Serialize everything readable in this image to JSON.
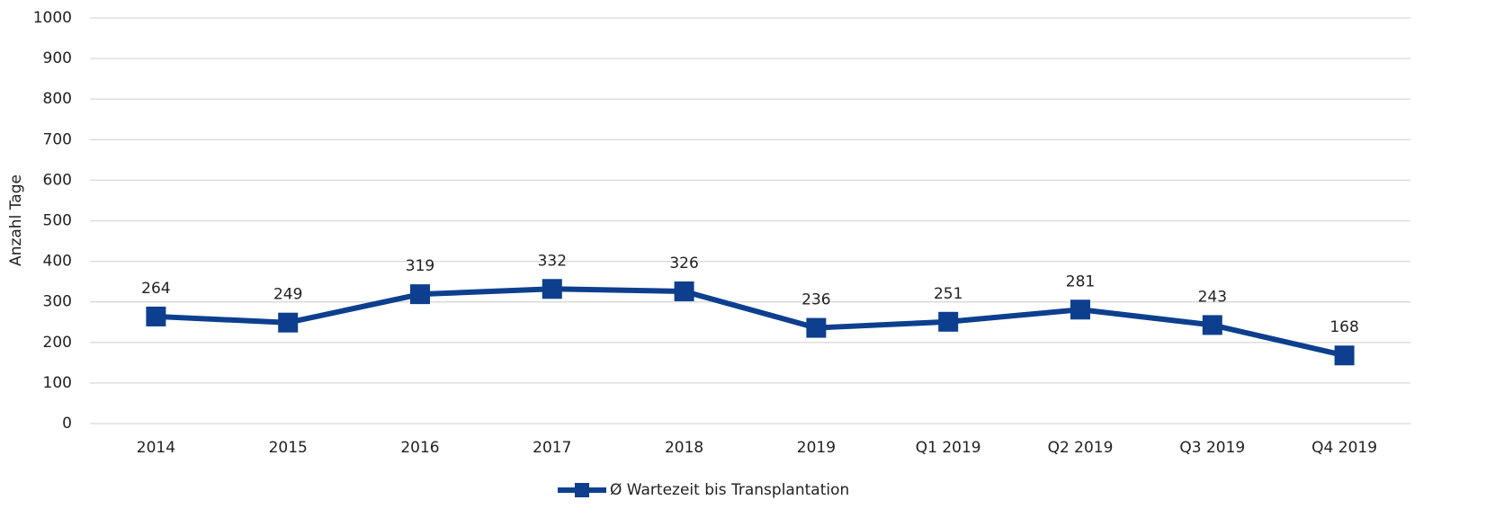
{
  "chart_data": {
    "type": "line",
    "y_label": "Anzahl Tage",
    "categories": [
      "2014",
      "2015",
      "2016",
      "2017",
      "2018",
      "2019",
      "Q1 2019",
      "Q2 2019",
      "Q3 2019",
      "Q4 2019"
    ],
    "series": [
      {
        "name": "Ø Wartezeit bis Transplantation",
        "color": "#0d3f8e",
        "values": [
          264,
          249,
          319,
          332,
          326,
          236,
          251,
          281,
          243,
          168
        ]
      }
    ],
    "ylim": [
      0,
      1000
    ],
    "yticks": [
      0,
      100,
      200,
      300,
      400,
      500,
      600,
      700,
      800,
      900,
      1000
    ],
    "grid": true,
    "legend": "bottom",
    "data_labels": true
  }
}
